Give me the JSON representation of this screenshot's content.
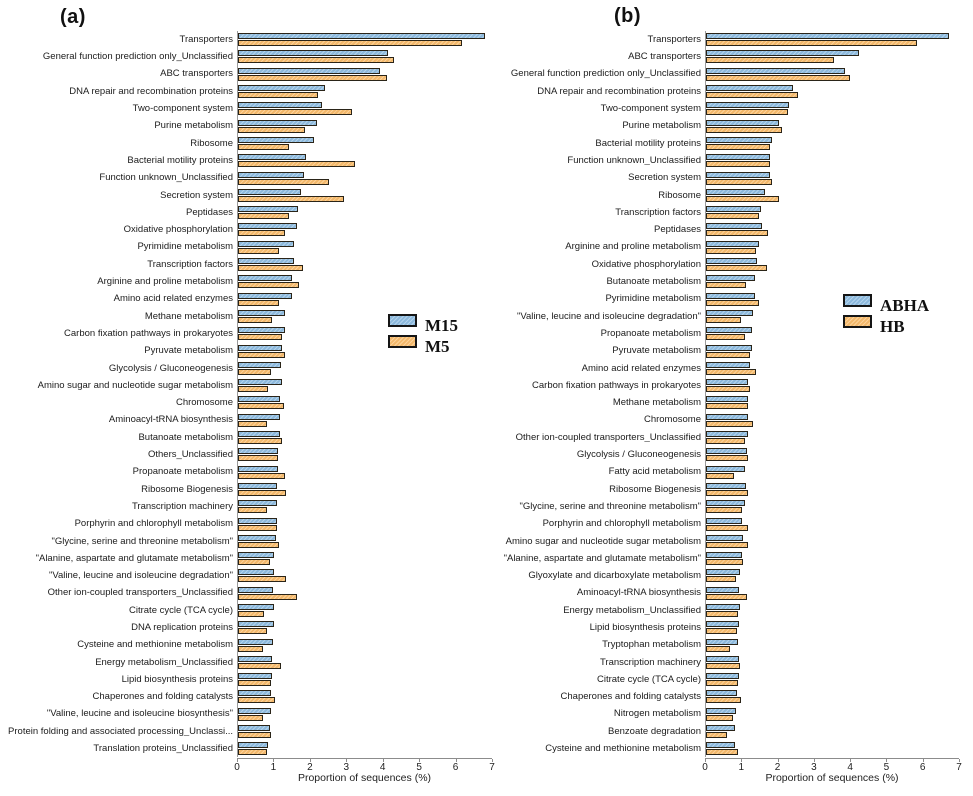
{
  "colors": {
    "series_blue": "#92c0e4",
    "series_orange": "#fcbf6f",
    "bar_border": "#2a2418",
    "axis_line": "#8c8c8c",
    "text": "#1c1c1c"
  },
  "chart_data": [
    {
      "type": "bar",
      "orientation": "horizontal",
      "title": "(a)",
      "xlabel": "Proportion of sequences (%)",
      "xlim": [
        0,
        7
      ],
      "xticks": [
        0,
        1,
        2,
        3,
        4,
        5,
        6,
        7
      ],
      "grid": false,
      "legend_position": "right-middle",
      "categories": [
        "Transporters",
        "General function prediction only_Unclassified",
        "ABC transporters",
        "DNA repair and recombination proteins",
        "Two-component system",
        "Purine metabolism",
        "Ribosome",
        "Bacterial motility proteins",
        "Function unknown_Unclassified",
        "Secretion system",
        "Peptidases",
        "Oxidative phosphorylation",
        "Pyrimidine metabolism",
        "Transcription factors",
        "Arginine and proline metabolism",
        "Amino acid related enzymes",
        "Methane metabolism",
        "Carbon fixation pathways in prokaryotes",
        "Pyruvate metabolism",
        "Glycolysis / Gluconeogenesis",
        "Amino sugar and nucleotide sugar metabolism",
        "Chromosome",
        "Aminoacyl-tRNA biosynthesis",
        "Butanoate metabolism",
        "Others_Unclassified",
        "Propanoate metabolism",
        "Ribosome Biogenesis",
        "Transcription machinery",
        "Porphyrin and chlorophyll metabolism",
        "\"Glycine, serine and threonine metabolism\"",
        "\"Alanine, aspartate and glutamate metabolism\"",
        "\"Valine, leucine and isoleucine degradation\"",
        "Other ion-coupled transporters_Unclassified",
        "Citrate cycle (TCA cycle)",
        "DNA replication proteins",
        "Cysteine and methionine metabolism",
        "Energy metabolism_Unclassified",
        "Lipid biosynthesis proteins",
        "Chaperones and folding catalysts",
        "\"Valine, leucine and isoleucine biosynthesis\"",
        "Protein folding and associated processing_Unclassi...",
        "Translation proteins_Unclassified"
      ],
      "series": [
        {
          "name": "M15",
          "color": "#92c0e4",
          "values": [
            6.74,
            4.08,
            3.87,
            2.33,
            2.27,
            2.12,
            2.05,
            1.81,
            1.75,
            1.68,
            1.59,
            1.57,
            1.5,
            1.49,
            1.43,
            1.42,
            1.25,
            1.23,
            1.17,
            1.14,
            1.15,
            1.11,
            1.1,
            1.09,
            1.04,
            1.06,
            1.03,
            1.03,
            1.01,
            0.99,
            0.95,
            0.95,
            0.92,
            0.93,
            0.93,
            0.92,
            0.89,
            0.87,
            0.86,
            0.86,
            0.83,
            0.78
          ]
        },
        {
          "name": "M5",
          "color": "#fcbf6f",
          "values": [
            6.12,
            4.25,
            4.05,
            2.14,
            3.08,
            1.78,
            1.35,
            3.18,
            2.44,
            2.87,
            1.35,
            1.24,
            1.08,
            1.73,
            1.63,
            1.08,
            0.88,
            1.15,
            1.24,
            0.85,
            0.77,
            1.22,
            0.75,
            1.15,
            1.06,
            1.24,
            1.26,
            0.75,
            1.03,
            1.08,
            0.83,
            1.27,
            1.58,
            0.66,
            0.75,
            0.64,
            1.12,
            0.86,
            0.97,
            0.64,
            0.85,
            0.75
          ]
        }
      ]
    },
    {
      "type": "bar",
      "orientation": "horizontal",
      "title": "(b)",
      "xlabel": "Proportion of sequences (%)",
      "xlim": [
        0,
        7
      ],
      "xticks": [
        0,
        1,
        2,
        3,
        4,
        5,
        6,
        7
      ],
      "grid": false,
      "legend_position": "right-middle",
      "categories": [
        "Transporters",
        "ABC transporters",
        "General function prediction only_Unclassified",
        "DNA repair and recombination proteins",
        "Two-component system",
        "Purine metabolism",
        "Bacterial motility proteins",
        "Function unknown_Unclassified",
        "Secretion system",
        "Ribosome",
        "Transcription factors",
        "Peptidases",
        "Arginine and proline metabolism",
        "Oxidative phosphorylation",
        "Butanoate metabolism",
        "Pyrimidine metabolism",
        "\"Valine, leucine and isoleucine degradation\"",
        "Propanoate metabolism",
        "Pyruvate metabolism",
        "Amino acid related enzymes",
        "Carbon fixation pathways in prokaryotes",
        "Methane metabolism",
        "Chromosome",
        "Other ion-coupled transporters_Unclassified",
        "Glycolysis / Gluconeogenesis",
        "Fatty acid metabolism",
        "Ribosome Biogenesis",
        "\"Glycine, serine and threonine metabolism\"",
        "Porphyrin and chlorophyll metabolism",
        "Amino sugar and nucleotide sugar metabolism",
        "\"Alanine, aspartate and glutamate metabolism\"",
        "Glyoxylate and dicarboxylate metabolism",
        "Aminoacyl-tRNA biosynthesis",
        "Energy metabolism_Unclassified",
        "Lipid biosynthesis proteins",
        "Tryptophan metabolism",
        "Transcription machinery",
        "Citrate cycle (TCA cycle)",
        "Chaperones and folding catalysts",
        "Nitrogen metabolism",
        "Benzoate degradation",
        "Cysteine and methionine metabolism"
      ],
      "series": [
        {
          "name": "ABHA",
          "color": "#92c0e4",
          "values": [
            6.66,
            4.19,
            3.8,
            2.35,
            2.24,
            1.96,
            1.76,
            1.71,
            1.71,
            1.58,
            1.48,
            1.5,
            1.41,
            1.35,
            1.3,
            1.3,
            1.25,
            1.23,
            1.21,
            1.16,
            1.12,
            1.12,
            1.12,
            1.1,
            1.07,
            1.03,
            1.05,
            1.03,
            0.95,
            0.98,
            0.95,
            0.89,
            0.87,
            0.89,
            0.86,
            0.82,
            0.86,
            0.86,
            0.79,
            0.78,
            0.75,
            0.75
          ]
        },
        {
          "name": "HB",
          "color": "#fcbf6f",
          "values": [
            5.77,
            3.48,
            3.94,
            2.5,
            2.22,
            2.06,
            1.71,
            1.71,
            1.78,
            1.96,
            1.42,
            1.67,
            1.33,
            1.62,
            1.04,
            1.41,
            0.92,
            1.01,
            1.16,
            1.32,
            1.16,
            1.12,
            1.24,
            1.03,
            1.12,
            0.73,
            1.1,
            0.93,
            1.1,
            1.12,
            0.98,
            0.77,
            1.07,
            0.82,
            0.8,
            0.61,
            0.89,
            0.84,
            0.91,
            0.7,
            0.52,
            0.82
          ]
        }
      ]
    }
  ]
}
